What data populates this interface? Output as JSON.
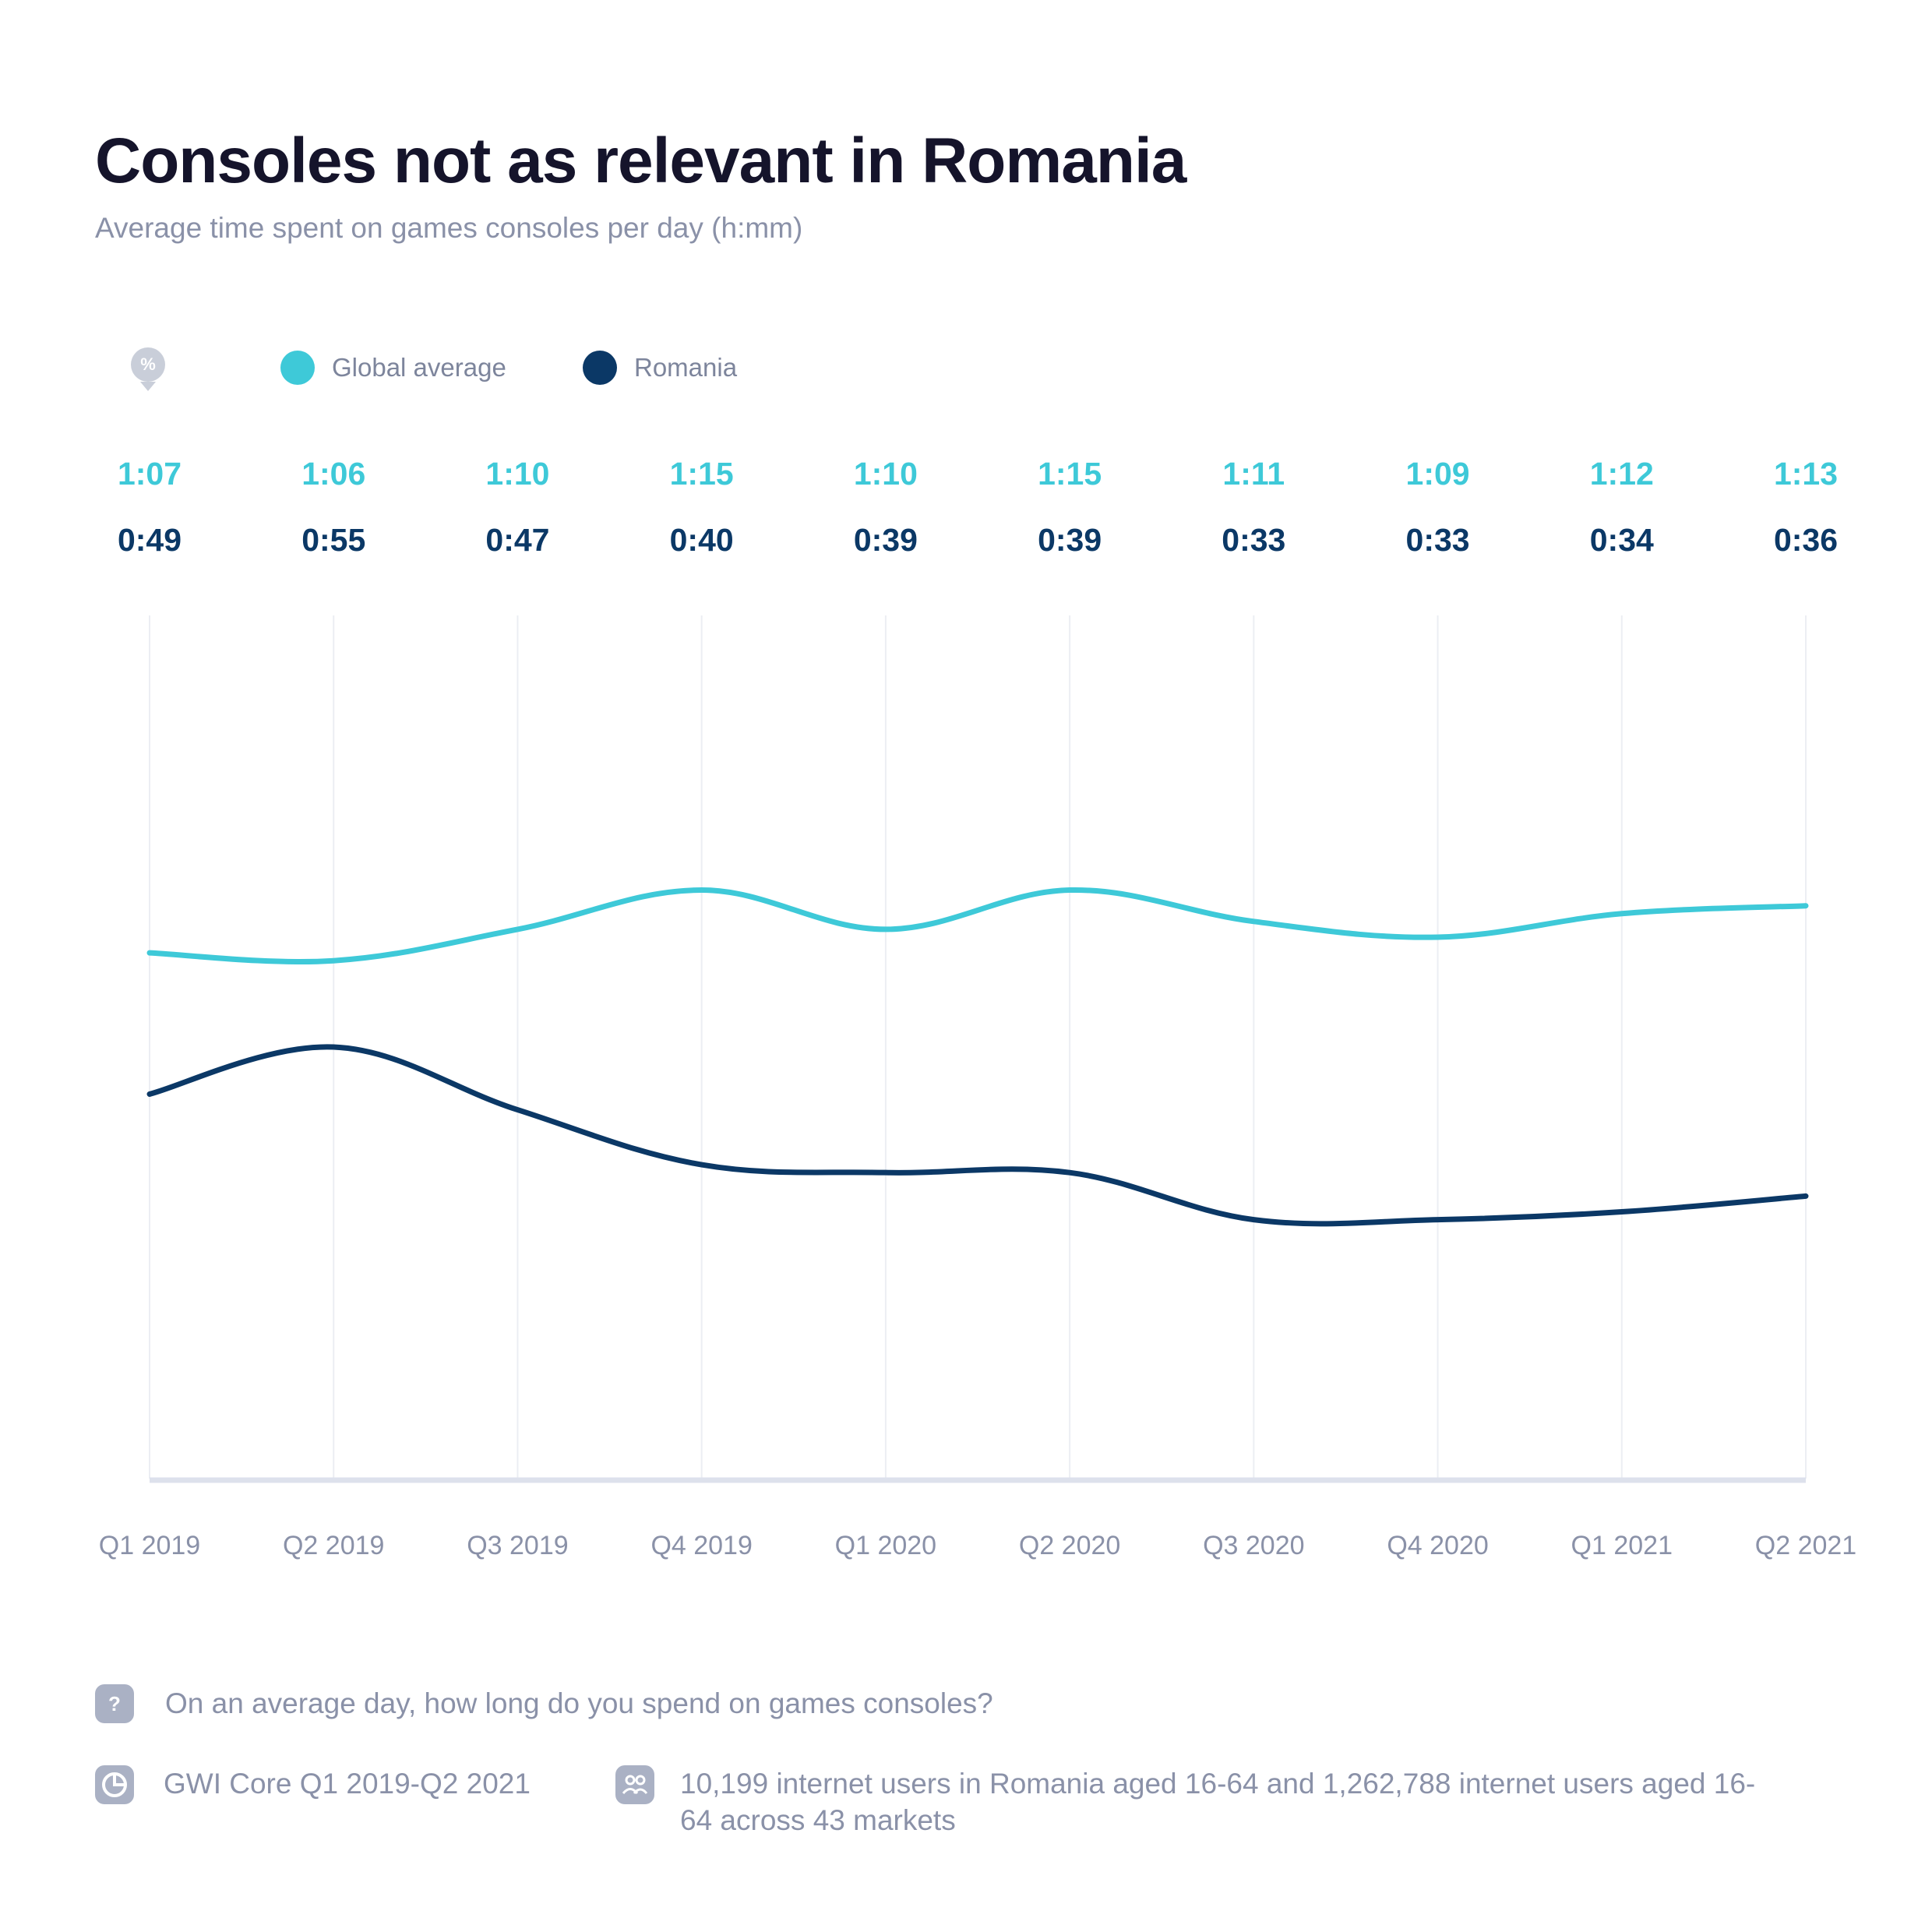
{
  "header": {
    "title": "Consoles not as relevant in Romania",
    "subtitle": "Average time spent on games consoles per day (h:mm)"
  },
  "legend": {
    "icon": "percent-pin-icon",
    "icon_glyph": "%",
    "items": [
      {
        "label": "Global average",
        "color": "#3ec9d8"
      },
      {
        "label": "Romania",
        "color": "#0b3866"
      }
    ]
  },
  "chart_data": {
    "type": "line",
    "title": "Consoles not as relevant in Romania",
    "subtitle": "Average time spent on games consoles per day (h:mm)",
    "categories": [
      "Q1 2019",
      "Q2 2019",
      "Q3 2019",
      "Q4 2019",
      "Q1 2020",
      "Q2 2020",
      "Q3 2020",
      "Q4 2020",
      "Q1 2021",
      "Q2 2021"
    ],
    "series": [
      {
        "name": "Global average",
        "color": "#3ec9d8",
        "labels": [
          "1:07",
          "1:06",
          "1:10",
          "1:15",
          "1:10",
          "1:15",
          "1:11",
          "1:09",
          "1:12",
          "1:13"
        ],
        "values": [
          67,
          66,
          70,
          75,
          70,
          75,
          71,
          69,
          72,
          73
        ]
      },
      {
        "name": "Romania",
        "color": "#0b3866",
        "labels": [
          "0:49",
          "0:55",
          "0:47",
          "0:40",
          "0:39",
          "0:39",
          "0:33",
          "0:33",
          "0:34",
          "0:36"
        ],
        "values": [
          49,
          55,
          47,
          40,
          39,
          39,
          33,
          33,
          34,
          36
        ]
      }
    ],
    "ylim": [
      0,
      110
    ],
    "grid": "vertical",
    "legend_position": "top-left"
  },
  "footer": {
    "question_icon": "question-icon",
    "question_glyph": "?",
    "question": "On an average day, how long do you spend on games consoles?",
    "source_icon": "pie-chart-icon",
    "source": "GWI Core Q1 2019-Q2 2021",
    "sample_icon": "users-icon",
    "sample": "10,199 internet users in Romania aged 16-64 and 1,262,788 internet users aged 16-64 across 43 markets"
  }
}
